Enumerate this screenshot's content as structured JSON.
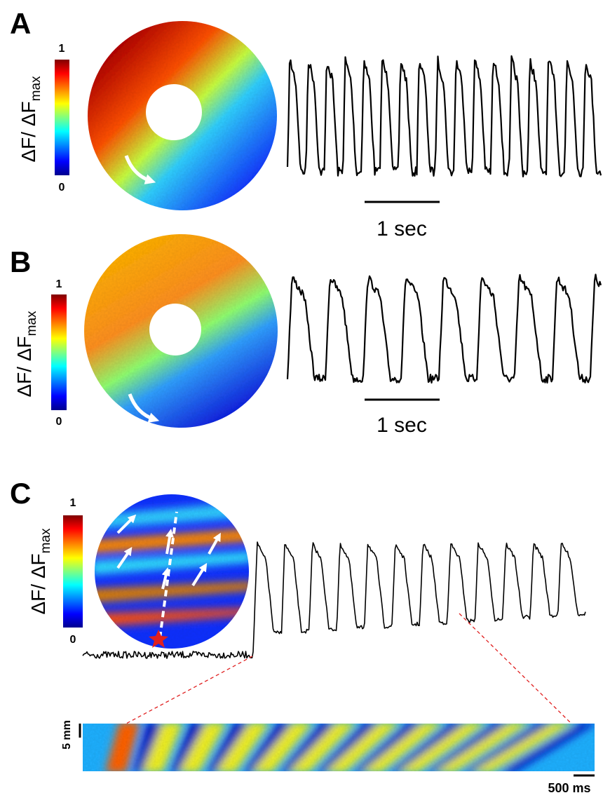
{
  "panels": [
    {
      "label": "A",
      "colorbar": {
        "max": "1",
        "min": "0",
        "label": "ΔF/ ΔF",
        "label_sub": "max"
      },
      "scale_bar": "1 sec"
    },
    {
      "label": "B",
      "colorbar": {
        "max": "1",
        "min": "0",
        "label": "ΔF/ ΔF",
        "label_sub": "max"
      },
      "scale_bar": "1 sec"
    },
    {
      "label": "C",
      "colorbar": {
        "max": "1",
        "min": "0",
        "label": "ΔF/ ΔF",
        "label_sub": "max"
      },
      "kymograph": {
        "space_scale": "5 mm",
        "time_scale": "500 ms"
      }
    }
  ]
}
